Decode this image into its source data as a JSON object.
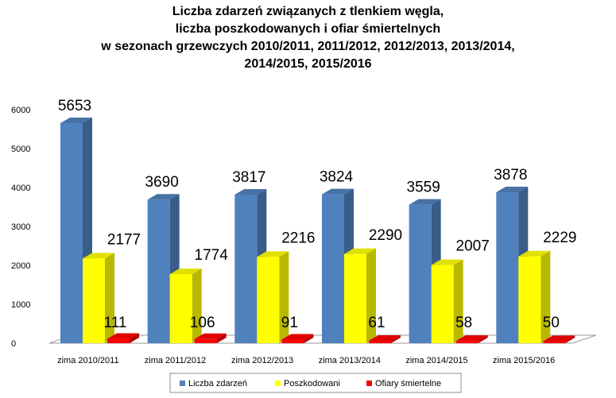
{
  "chart_data": {
    "type": "bar",
    "title_lines": [
      "Liczba zdarzeń związanych z tlenkiem węgla,",
      "liczba poszkodowanych i ofiar śmiertelnych",
      "w sezonach grzewczych 2010/2011, 2011/2012, 2012/2013, 2013/2014,",
      "2014/2015, 2015/2016"
    ],
    "categories": [
      "zima 2010/2011",
      "zima 2011/2012",
      "zima 2012/2013",
      "zima 2013/2014",
      "zima 2014/2015",
      "zima 2015/2016"
    ],
    "series": [
      {
        "name": "Liczba zdarzeń",
        "color": "#4F81BD",
        "values": [
          5653,
          3690,
          3817,
          3824,
          3559,
          3878
        ]
      },
      {
        "name": "Poszkodowani",
        "color": "#FFFF00",
        "values": [
          2177,
          1774,
          2216,
          2290,
          2007,
          2229
        ]
      },
      {
        "name": "Ofiary śmiertelne",
        "color": "#FF0000",
        "values": [
          111,
          106,
          91,
          61,
          58,
          50
        ]
      }
    ],
    "ylim": [
      0,
      6000
    ],
    "yticks": [
      0,
      1000,
      2000,
      3000,
      4000,
      5000,
      6000
    ],
    "grid": false,
    "legend_position": "bottom",
    "style": "3d-clustered-column"
  }
}
